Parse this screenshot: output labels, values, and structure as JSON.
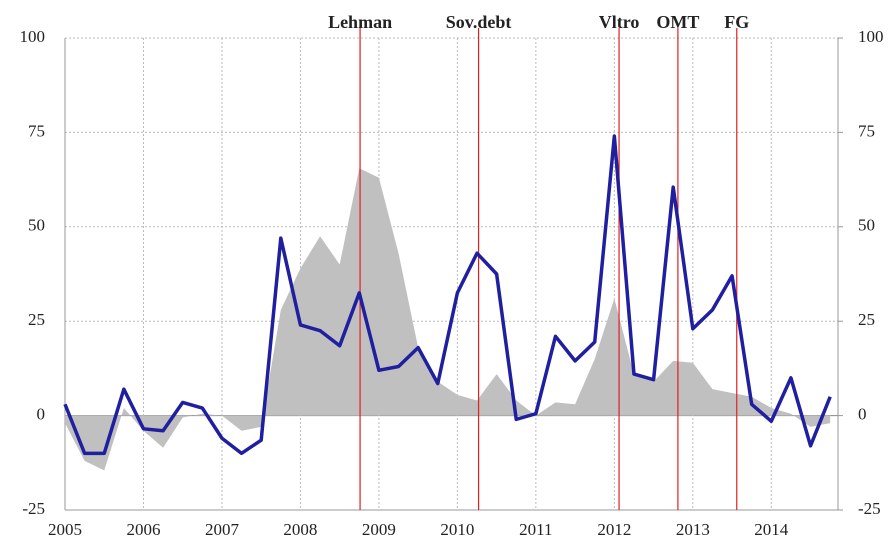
{
  "chart_data": {
    "type": "line",
    "x": [
      2005.0,
      2005.25,
      2005.5,
      2005.75,
      2006.0,
      2006.25,
      2006.5,
      2006.75,
      2007.0,
      2007.25,
      2007.5,
      2007.75,
      2008.0,
      2008.25,
      2008.5,
      2008.75,
      2009.0,
      2009.25,
      2009.5,
      2009.75,
      2010.0,
      2010.25,
      2010.5,
      2010.75,
      2011.0,
      2011.25,
      2011.5,
      2011.75,
      2012.0,
      2012.25,
      2012.5,
      2012.75,
      2013.0,
      2013.25,
      2013.5,
      2013.75,
      2014.0,
      2014.25,
      2014.5,
      2014.75
    ],
    "series": [
      {
        "kind": "area",
        "color": "#c0c0c0",
        "values": [
          -2,
          -12,
          -14.5,
          2,
          -4,
          -8.5,
          -0.5,
          0.5,
          0,
          -4,
          -3,
          28,
          39,
          47.5,
          40,
          65.5,
          63,
          43,
          18,
          9,
          5.5,
          4,
          11,
          4,
          0,
          3.5,
          3,
          15,
          31,
          11,
          9,
          14.5,
          14,
          7,
          6,
          5,
          2,
          0.5,
          -3,
          -2
        ]
      },
      {
        "kind": "line",
        "color": "#1f1fa0",
        "values": [
          3,
          -10,
          -10,
          7,
          -3.5,
          -4,
          3.5,
          2,
          -6,
          -10,
          -6.5,
          47,
          24,
          22.5,
          18.5,
          32.5,
          12,
          13,
          18,
          8.5,
          32.5,
          43,
          37.5,
          -1,
          0.5,
          21,
          14.5,
          19.5,
          74,
          11,
          9.5,
          60.5,
          23,
          28,
          37,
          3,
          -1.5,
          10,
          -8,
          5
        ]
      }
    ],
    "events": [
      {
        "x": 2008.76,
        "label": "Lehman"
      },
      {
        "x": 2010.27,
        "label": "Sov.debt"
      },
      {
        "x": 2012.06,
        "label": "Vltro"
      },
      {
        "x": 2012.81,
        "label": "OMT"
      },
      {
        "x": 2013.56,
        "label": "FG"
      }
    ],
    "event_color": "#e02020",
    "xlim": [
      2005,
      2014.85
    ],
    "xticks": [
      2005,
      2006,
      2007,
      2008,
      2009,
      2010,
      2011,
      2012,
      2013,
      2014
    ],
    "ylim": [
      -25,
      100
    ],
    "yticks": [
      -25,
      0,
      25,
      50,
      75,
      100
    ],
    "y2lim": [
      -25,
      100
    ],
    "y2ticks": [
      -25,
      0,
      25,
      50,
      75,
      100
    ],
    "grid": true
  }
}
